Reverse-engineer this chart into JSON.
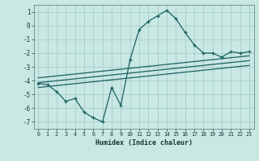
{
  "x": [
    0,
    1,
    2,
    3,
    4,
    5,
    6,
    7,
    8,
    9,
    10,
    11,
    12,
    13,
    14,
    15,
    16,
    17,
    18,
    19,
    20,
    21,
    22,
    23
  ],
  "line1": [
    -4.2,
    -4.3,
    -4.8,
    -5.5,
    -5.3,
    -6.3,
    -6.7,
    -7.0,
    -4.5,
    -5.8,
    -2.5,
    -0.3,
    0.3,
    0.7,
    1.1,
    0.5,
    -0.5,
    -1.4,
    -2.0,
    -2.0,
    -2.3,
    -1.9,
    -2.0,
    -1.9
  ],
  "line2_x": [
    0,
    23
  ],
  "line2_y": [
    -3.8,
    -2.2
  ],
  "line3_x": [
    0,
    23
  ],
  "line3_y": [
    -4.15,
    -2.55
  ],
  "line4_x": [
    0,
    23
  ],
  "line4_y": [
    -4.5,
    -2.9
  ],
  "background_color": "#c8e8e4",
  "grid_color": "#a8ccc8",
  "line_color": "#1a6060",
  "xlim": [
    -0.5,
    23.5
  ],
  "ylim": [
    -7.5,
    1.5
  ],
  "yticks": [
    1,
    0,
    -1,
    -2,
    -3,
    -4,
    -5,
    -6,
    -7
  ],
  "xticks": [
    0,
    1,
    2,
    3,
    4,
    5,
    6,
    7,
    8,
    9,
    10,
    11,
    12,
    13,
    14,
    15,
    16,
    17,
    18,
    19,
    20,
    21,
    22,
    23
  ],
  "xlabel": "Humidex (Indice chaleur)"
}
